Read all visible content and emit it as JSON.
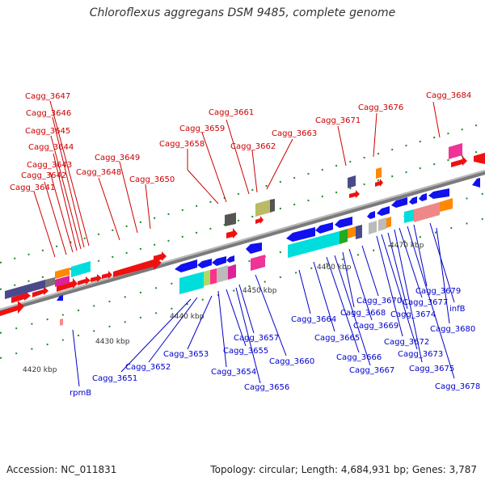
{
  "title": "Chloroflexus aggregans DSM 9485, complete genome",
  "footer": {
    "accession": "Accession: NC_011831",
    "info": "Topology: circular; Length: 4,684,931 bp; Genes: 3,787"
  },
  "scale_labels": [
    "4420 kbp",
    "4430 kbp",
    "4440 kbp",
    "4450 kbp",
    "4460 kbp",
    "4470 kbp"
  ],
  "colors": {
    "top_label": "#cc0000",
    "bottom_label": "#0000cc",
    "forward_gene": "#ee1111",
    "reverse_gene": "#1111ee",
    "backbone": "#999999"
  },
  "top_labels": [
    "Cagg_3641",
    "Cagg_3642",
    "Cagg_3643",
    "Cagg_3644",
    "Cagg_3645",
    "Cagg_3646",
    "Cagg_3647",
    "Cagg_3648",
    "Cagg_3649",
    "Cagg_3650",
    "Cagg_3658",
    "Cagg_3659",
    "Cagg_3661",
    "Cagg_3662",
    "Cagg_3663",
    "Cagg_3671",
    "Cagg_3676",
    "Cagg_3684"
  ],
  "bottom_labels": [
    "rpmB",
    "Cagg_3651",
    "Cagg_3652",
    "Cagg_3653",
    "Cagg_3654",
    "Cagg_3655",
    "Cagg_3656",
    "Cagg_3657",
    "Cagg_3660",
    "Cagg_3664",
    "Cagg_3665",
    "Cagg_3666",
    "Cagg_3667",
    "Cagg_3668",
    "Cagg_3669",
    "Cagg_3670",
    "Cagg_3672",
    "Cagg_3673",
    "Cagg_3674",
    "Cagg_3675",
    "Cagg_3677",
    "Cagg_3678",
    "Cagg_3679",
    "infB",
    "Cagg_3680"
  ]
}
